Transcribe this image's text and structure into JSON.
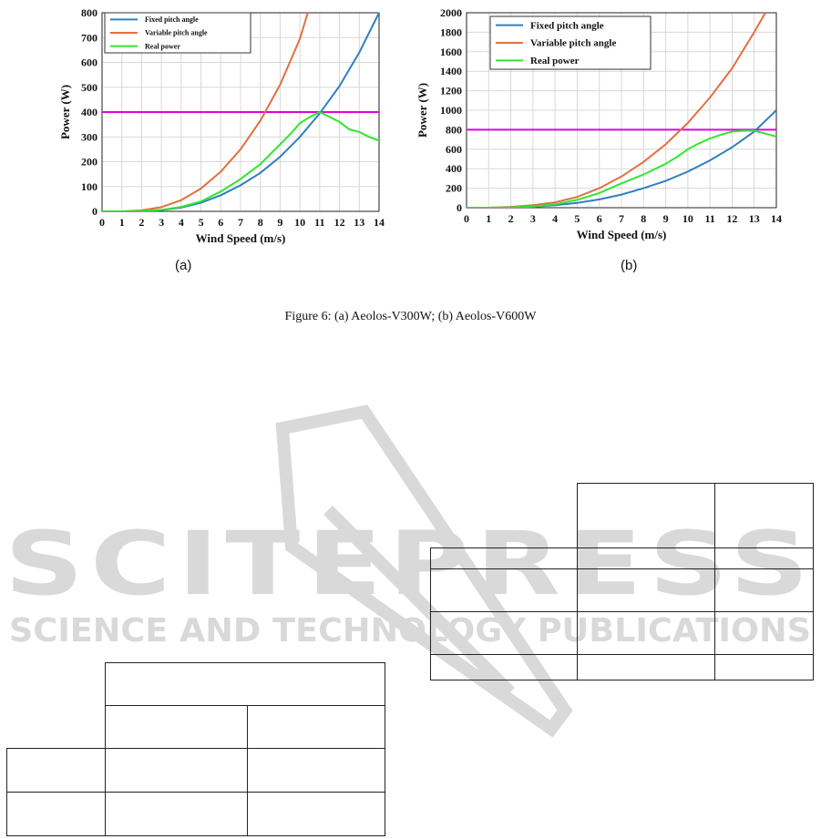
{
  "figure": {
    "caption": "Figure 6: (a) Aeolos-V300W; (b) Aeolos-V600W",
    "subfigure_labels": [
      "(a)",
      "(b)"
    ]
  },
  "watermark": {
    "brand": "SCITEPRESS",
    "tagline": "SCIENCE AND TECHNOLOGY PUBLICATIONS",
    "color": "#d9d9d9"
  },
  "chart_data": [
    {
      "type": "line",
      "xlabel": "Wind Speed (m/s)",
      "ylabel": "Power (W)",
      "xlim": [
        0,
        14
      ],
      "ylim": [
        0,
        800
      ],
      "xticks": [
        0,
        1,
        2,
        3,
        4,
        5,
        6,
        7,
        8,
        9,
        10,
        11,
        12,
        13,
        14
      ],
      "yticks": [
        0,
        100,
        200,
        300,
        400,
        500,
        600,
        700,
        800
      ],
      "grid": true,
      "legend_position": "top-left",
      "hline": {
        "y": 400,
        "color": "#e000e0"
      },
      "series": [
        {
          "name": "Fixed pitch angle",
          "color": "#2f7fc1",
          "x": [
            0,
            1,
            2,
            3,
            4,
            5,
            6,
            7,
            8,
            9,
            10,
            11,
            12,
            13,
            14
          ],
          "y": [
            0,
            0,
            1,
            5,
            15,
            35,
            65,
            105,
            155,
            220,
            300,
            395,
            505,
            640,
            800
          ]
        },
        {
          "name": "Variable pitch angle",
          "color": "#e07040",
          "x": [
            0,
            1,
            2,
            3,
            4,
            5,
            6,
            7,
            8,
            9,
            10,
            10.4
          ],
          "y": [
            0,
            0,
            4,
            17,
            45,
            92,
            160,
            250,
            365,
            510,
            695,
            800
          ]
        },
        {
          "name": "Real power",
          "color": "#2ee82e",
          "x": [
            0,
            1,
            2,
            3,
            4,
            5,
            6,
            7,
            8,
            9,
            9.5,
            10,
            10.5,
            11,
            11.5,
            12,
            12.5,
            13,
            13.5,
            14
          ],
          "y": [
            0,
            0,
            1,
            6,
            18,
            40,
            80,
            130,
            190,
            270,
            310,
            355,
            380,
            400,
            380,
            360,
            330,
            320,
            300,
            285
          ]
        }
      ]
    },
    {
      "type": "line",
      "xlabel": "Wind Speed (m/s)",
      "ylabel": "Power (W)",
      "xlim": [
        0,
        14
      ],
      "ylim": [
        0,
        2000
      ],
      "xticks": [
        0,
        1,
        2,
        3,
        4,
        5,
        6,
        7,
        8,
        9,
        10,
        11,
        12,
        13,
        14
      ],
      "yticks": [
        0,
        200,
        400,
        600,
        800,
        1000,
        1200,
        1400,
        1600,
        1800,
        2000
      ],
      "grid": true,
      "legend_position": "top-left",
      "hline": {
        "y": 800,
        "color": "#e000e0"
      },
      "series": [
        {
          "name": "Fixed pitch angle",
          "color": "#2f7fc1",
          "x": [
            0,
            1,
            2,
            3,
            4,
            5,
            6,
            7,
            8,
            9,
            10,
            11,
            12,
            13,
            14
          ],
          "y": [
            0,
            0,
            2,
            10,
            25,
            50,
            85,
            135,
            200,
            275,
            370,
            485,
            620,
            780,
            1000
          ]
        },
        {
          "name": "Variable pitch angle",
          "color": "#e07040",
          "x": [
            0,
            1,
            2,
            3,
            4,
            5,
            6,
            7,
            8,
            9,
            10,
            11,
            12,
            13,
            13.5
          ],
          "y": [
            0,
            0,
            8,
            25,
            55,
            110,
            200,
            320,
            470,
            650,
            870,
            1130,
            1430,
            1800,
            2000
          ]
        },
        {
          "name": "Real power",
          "color": "#2ee82e",
          "x": [
            0,
            1,
            2,
            3,
            4,
            5,
            6,
            7,
            8,
            9,
            9.5,
            10,
            10.5,
            11,
            11.5,
            12,
            12.5,
            13,
            13.5,
            14
          ],
          "y": [
            0,
            0,
            2,
            12,
            35,
            80,
            150,
            250,
            340,
            450,
            520,
            600,
            660,
            710,
            750,
            780,
            790,
            790,
            760,
            730
          ]
        }
      ]
    }
  ]
}
